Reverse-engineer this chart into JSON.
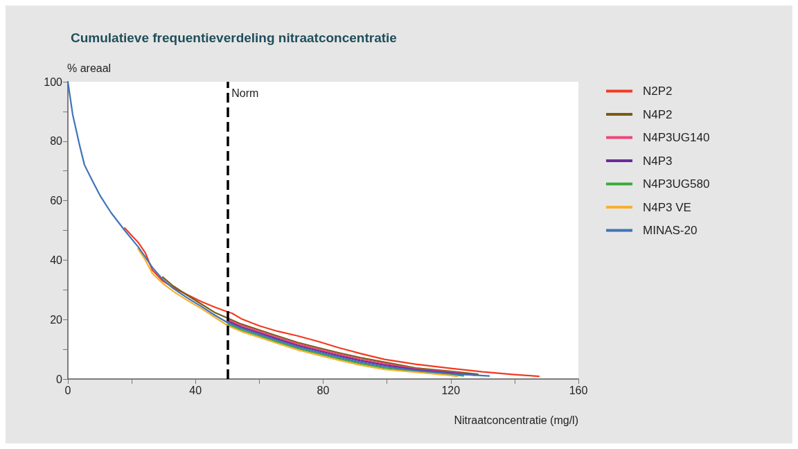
{
  "chart_data": {
    "type": "line",
    "title": "Cumulatieve frequentieverdeling nitraatconcentratie",
    "ylabel": "% areaal",
    "xlabel": "Nitraatconcentratie (mg/l)",
    "xlim": [
      0,
      160
    ],
    "xticks": [
      0,
      {
        "value": 20,
        "label": null
      },
      40,
      {
        "value": 60,
        "label": null
      },
      80,
      {
        "value": 100,
        "label": null
      },
      120,
      {
        "value": 140,
        "label": null
      },
      160
    ],
    "ylim": [
      0,
      100
    ],
    "yticks": [
      0,
      {
        "value": 10,
        "label": null
      },
      20,
      {
        "value": 30,
        "label": null
      },
      40,
      {
        "value": 50,
        "label": null
      },
      60,
      {
        "value": 70,
        "label": null
      },
      80,
      {
        "value": 90,
        "label": null
      },
      100
    ],
    "grid": false,
    "legend": "right",
    "marker": "none",
    "line_style": "solid",
    "ref_lines": [
      {
        "axis": "x",
        "value": 50,
        "label": "Norm",
        "color": "#000000",
        "line_style": "dashed"
      }
    ],
    "series": [
      {
        "name": "N2P2",
        "color": "#f23a22",
        "x": [
          17.8,
          22,
          24.3,
          26.5,
          29.7,
          33,
          37.4,
          41.7,
          46,
          50,
          51.5,
          54.3,
          60,
          65.6,
          72,
          78.6,
          85,
          91.6,
          99.2,
          109,
          120,
          130,
          140,
          147.6
        ],
        "values": [
          50.8,
          46,
          42.4,
          36.6,
          33,
          30.8,
          28.4,
          26.1,
          24.2,
          22.6,
          22.1,
          20.3,
          17.9,
          16.1,
          14.5,
          12.6,
          10.5,
          8.6,
          6.6,
          5,
          3.6,
          2.4,
          1.5,
          0.9
        ]
      },
      {
        "name": "N4P2",
        "color": "#7a5c14",
        "x": [
          29.7,
          33,
          37.4,
          41.7,
          46,
          50,
          54.3,
          60,
          65.6,
          72,
          78.6,
          85,
          91.6,
          99.2,
          109,
          120,
          128.5
        ],
        "values": [
          34.3,
          31.3,
          28.2,
          25.3,
          22.4,
          20.5,
          18.5,
          16.5,
          14.5,
          12.3,
          10.5,
          8.8,
          7.2,
          5.7,
          3.7,
          2.6,
          1.6
        ]
      },
      {
        "name": "N4P3UG140",
        "color": "#f0457a",
        "x": [
          50,
          54.3,
          60,
          65.6,
          72,
          78.6,
          85,
          91.6,
          99.2,
          109,
          120,
          127
        ],
        "values": [
          20,
          18,
          16,
          14,
          11.8,
          10,
          8.3,
          6.7,
          5.2,
          3.4,
          2.3,
          1.4
        ]
      },
      {
        "name": "N4P3",
        "color": "#6a2a9a",
        "x": [
          50,
          54.3,
          60,
          65.6,
          72,
          78.6,
          85,
          91.6,
          99.2,
          109,
          120,
          127.6
        ],
        "values": [
          19.5,
          17.5,
          15.5,
          13.5,
          11.3,
          9.5,
          7.8,
          6.2,
          4.7,
          3.2,
          2.1,
          1.3
        ]
      },
      {
        "name": "N4P3UG580",
        "color": "#3aaa3a",
        "x": [
          50,
          54.3,
          60,
          65.6,
          72,
          78.6,
          85,
          91.6,
          99.2,
          109,
          120,
          124
        ],
        "values": [
          18.5,
          16.5,
          14.5,
          12.5,
          10.3,
          8.5,
          6.8,
          5.2,
          3.7,
          2.6,
          1.5,
          1.1
        ]
      },
      {
        "name": "N4P3 VE",
        "color": "#f8b030",
        "x": [
          22,
          24.3,
          26.5,
          29.7,
          33,
          37.4,
          41.7,
          46,
          50,
          54.3,
          60,
          65.6,
          72,
          78.6,
          85,
          91.6,
          99.2,
          109,
          120,
          122
        ],
        "values": [
          43.8,
          40,
          35.5,
          32.2,
          29.5,
          26.5,
          23.8,
          20.8,
          18,
          16,
          14,
          12,
          9.8,
          8,
          6.3,
          4.7,
          3.2,
          2.3,
          1.2,
          0.9
        ]
      },
      {
        "name": "MINAS-20",
        "color": "#3f73b8",
        "x": [
          0,
          1.5,
          3.7,
          5.2,
          8,
          10.2,
          13.5,
          17.8,
          22,
          24.3,
          26.5,
          29.7,
          33,
          37.4,
          41.7,
          46,
          50,
          54.3,
          60,
          65.6,
          72,
          78.6,
          85,
          91.6,
          99.2,
          109,
          120,
          132
        ],
        "values": [
          100,
          89,
          78.5,
          72,
          66,
          61.5,
          56,
          50,
          44.5,
          41,
          37.5,
          33.5,
          30.5,
          27.3,
          24.5,
          21.5,
          19,
          17,
          15,
          13,
          10.8,
          9,
          7.3,
          5.7,
          4.2,
          2.9,
          1.8,
          1
        ]
      }
    ]
  }
}
